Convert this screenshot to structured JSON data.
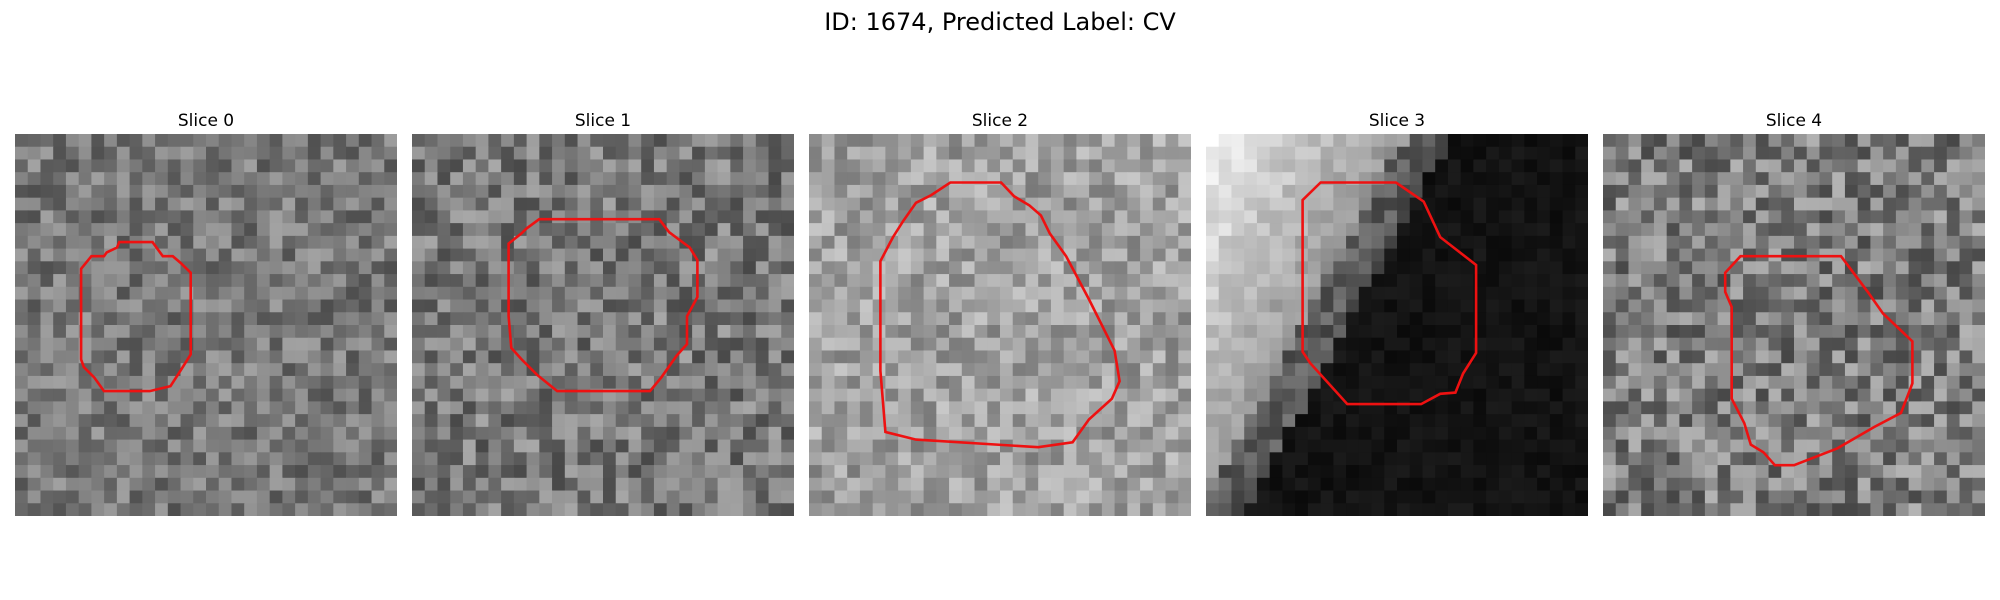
{
  "figure": {
    "title": "ID: 1674, Predicted Label: CV"
  },
  "panels": [
    {
      "title": "Slice 0",
      "base_gray": 120,
      "noise": 42,
      "seed": 11,
      "variant": "plain",
      "contour": [
        [
          0.327,
          0.283
        ],
        [
          0.36,
          0.283
        ],
        [
          0.387,
          0.32
        ],
        [
          0.413,
          0.32
        ],
        [
          0.433,
          0.337
        ],
        [
          0.46,
          0.363
        ],
        [
          0.46,
          0.577
        ],
        [
          0.433,
          0.62
        ],
        [
          0.407,
          0.66
        ],
        [
          0.353,
          0.673
        ],
        [
          0.233,
          0.673
        ],
        [
          0.207,
          0.637
        ],
        [
          0.18,
          0.61
        ],
        [
          0.173,
          0.59
        ],
        [
          0.173,
          0.353
        ],
        [
          0.2,
          0.32
        ],
        [
          0.233,
          0.32
        ],
        [
          0.24,
          0.31
        ],
        [
          0.267,
          0.297
        ],
        [
          0.273,
          0.283
        ]
      ],
      "outline_color": "#ee1111"
    },
    {
      "title": "Slice 1",
      "base_gray": 120,
      "noise": 48,
      "seed": 23,
      "variant": "plain",
      "contour": [
        [
          0.333,
          0.223
        ],
        [
          0.647,
          0.223
        ],
        [
          0.673,
          0.257
        ],
        [
          0.727,
          0.297
        ],
        [
          0.747,
          0.33
        ],
        [
          0.747,
          0.427
        ],
        [
          0.72,
          0.477
        ],
        [
          0.72,
          0.55
        ],
        [
          0.693,
          0.58
        ],
        [
          0.653,
          0.637
        ],
        [
          0.623,
          0.673
        ],
        [
          0.38,
          0.673
        ],
        [
          0.327,
          0.63
        ],
        [
          0.287,
          0.59
        ],
        [
          0.26,
          0.56
        ],
        [
          0.253,
          0.477
        ],
        [
          0.253,
          0.287
        ],
        [
          0.287,
          0.26
        ],
        [
          0.3,
          0.247
        ],
        [
          0.333,
          0.223
        ]
      ],
      "outline_color": "#ee1111"
    },
    {
      "title": "Slice 2",
      "base_gray": 160,
      "noise": 40,
      "seed": 37,
      "variant": "plain",
      "contour": [
        [
          0.37,
          0.127
        ],
        [
          0.503,
          0.127
        ],
        [
          0.537,
          0.163
        ],
        [
          0.577,
          0.187
        ],
        [
          0.607,
          0.213
        ],
        [
          0.63,
          0.26
        ],
        [
          0.673,
          0.32
        ],
        [
          0.733,
          0.433
        ],
        [
          0.8,
          0.567
        ],
        [
          0.813,
          0.647
        ],
        [
          0.793,
          0.693
        ],
        [
          0.733,
          0.747
        ],
        [
          0.69,
          0.807
        ],
        [
          0.6,
          0.82
        ],
        [
          0.28,
          0.8
        ],
        [
          0.2,
          0.78
        ],
        [
          0.187,
          0.62
        ],
        [
          0.187,
          0.333
        ],
        [
          0.22,
          0.27
        ],
        [
          0.247,
          0.227
        ],
        [
          0.28,
          0.18
        ],
        [
          0.32,
          0.16
        ],
        [
          0.37,
          0.127
        ]
      ],
      "outline_color": "#ee1111"
    },
    {
      "title": "Slice 3",
      "base_gray": 150,
      "noise": 30,
      "seed": 51,
      "variant": "dark-right",
      "contour": [
        [
          0.3,
          0.127
        ],
        [
          0.497,
          0.127
        ],
        [
          0.57,
          0.177
        ],
        [
          0.613,
          0.27
        ],
        [
          0.707,
          0.343
        ],
        [
          0.707,
          0.573
        ],
        [
          0.673,
          0.627
        ],
        [
          0.653,
          0.677
        ],
        [
          0.613,
          0.68
        ],
        [
          0.563,
          0.707
        ],
        [
          0.37,
          0.707
        ],
        [
          0.273,
          0.6
        ],
        [
          0.253,
          0.57
        ],
        [
          0.253,
          0.173
        ],
        [
          0.3,
          0.127
        ]
      ],
      "outline_color": "#ee1111"
    },
    {
      "title": "Slice 4",
      "base_gray": 125,
      "noise": 55,
      "seed": 67,
      "variant": "plain",
      "contour": [
        [
          0.36,
          0.32
        ],
        [
          0.623,
          0.32
        ],
        [
          0.693,
          0.413
        ],
        [
          0.733,
          0.47
        ],
        [
          0.81,
          0.543
        ],
        [
          0.81,
          0.653
        ],
        [
          0.78,
          0.73
        ],
        [
          0.71,
          0.767
        ],
        [
          0.613,
          0.823
        ],
        [
          0.5,
          0.867
        ],
        [
          0.45,
          0.867
        ],
        [
          0.42,
          0.833
        ],
        [
          0.387,
          0.813
        ],
        [
          0.37,
          0.757
        ],
        [
          0.337,
          0.693
        ],
        [
          0.337,
          0.453
        ],
        [
          0.32,
          0.413
        ],
        [
          0.32,
          0.363
        ],
        [
          0.36,
          0.32
        ]
      ],
      "outline_color": "#ee1111"
    }
  ]
}
